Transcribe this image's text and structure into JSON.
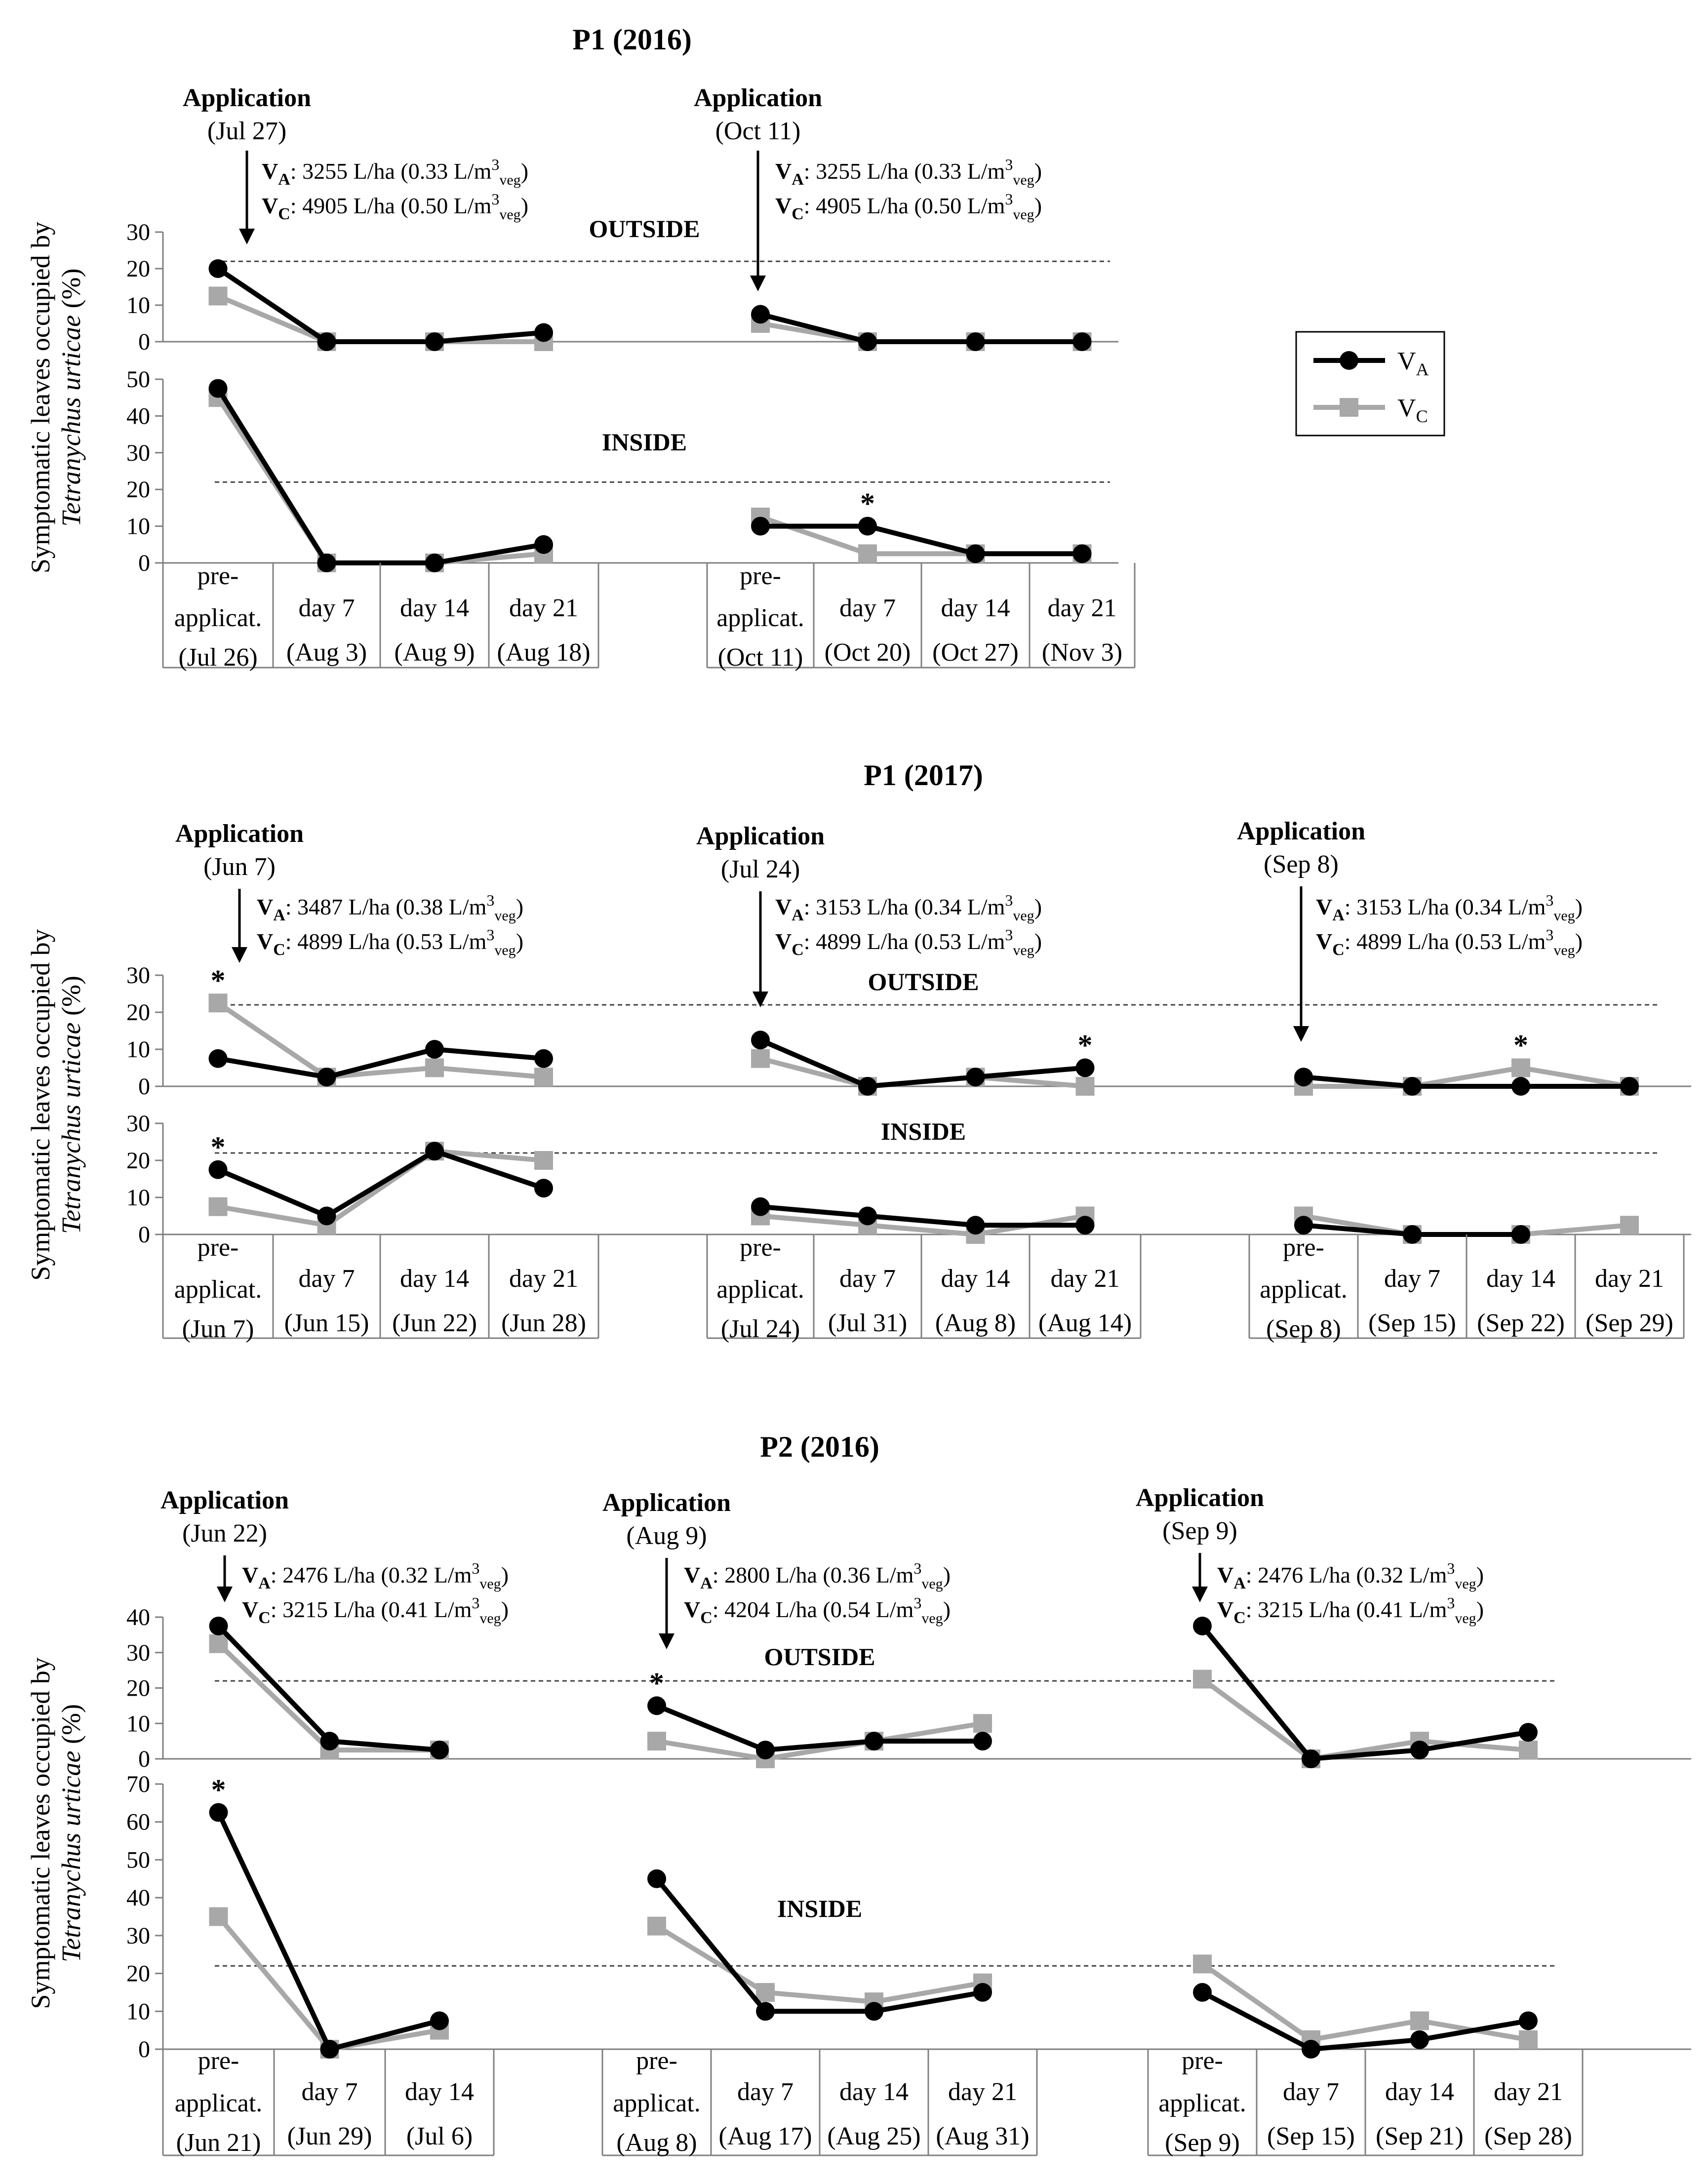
{
  "chart_data": [
    {
      "type": "line",
      "title": "P1 (2016)",
      "ylabel": "Symptomatic leaves occupied by",
      "ylabel_italic": "Tetranychus urticae",
      "ylabel_unit": "(%)",
      "threshold": 22,
      "threshold_style": "dashed",
      "legend": {
        "position": "right",
        "entries": [
          {
            "series": "V",
            "sub": "A",
            "color": "#000000",
            "marker": "circle"
          },
          {
            "series": "V",
            "sub": "C",
            "color": "#a8a8a8",
            "marker": "square"
          }
        ]
      },
      "applications": [
        {
          "label": "Application",
          "date": "(Jul 27)",
          "va": {
            "key": "V",
            "sub": "A",
            "text": ": 3255 L/ha (0.33 L/m",
            "sup": "3",
            "sub2": "veg",
            "close": ")"
          },
          "vc": {
            "key": "V",
            "sub": "C",
            "text": ": 4905 L/ha (0.50 L/m",
            "sup": "3",
            "sub2": "veg",
            "close": ")"
          }
        },
        {
          "label": "Application",
          "date": "(Oct 11)",
          "va": {
            "key": "V",
            "sub": "A",
            "text": ": 3255 L/ha (0.33 L/m",
            "sup": "3",
            "sub2": "veg",
            "close": ")"
          },
          "vc": {
            "key": "V",
            "sub": "C",
            "text": ": 4905 L/ha (0.50 L/m",
            "sup": "3",
            "sub2": "veg",
            "close": ")"
          }
        }
      ],
      "categories": [
        [
          "pre-",
          "applicat.",
          "(Jul 26)"
        ],
        [
          "day 7",
          "(Aug 3)"
        ],
        [
          "day 14",
          "(Aug 9)"
        ],
        [
          "day 21",
          "(Aug 18)"
        ],
        [
          "pre-",
          "applicat.",
          "(Oct 11)"
        ],
        [
          "day 7",
          "(Oct 20)"
        ],
        [
          "day 14",
          "(Oct 27)"
        ],
        [
          "day 21",
          "(Nov 3)"
        ]
      ],
      "groups": [
        [
          0,
          1,
          2,
          3
        ],
        [
          4,
          5,
          6,
          7
        ]
      ],
      "subplots": [
        {
          "label": "OUTSIDE",
          "ylim": [
            0,
            30
          ],
          "yticks": [
            0,
            10,
            20,
            30
          ],
          "series": [
            {
              "name": "VA",
              "groups": [
                [
                  20,
                  0,
                  0,
                  2.5
                ],
                [
                  7.5,
                  0,
                  0,
                  0
                ]
              ]
            },
            {
              "name": "VC",
              "groups": [
                [
                  12.5,
                  0,
                  0,
                  0
                ],
                [
                  5,
                  0,
                  0,
                  0
                ]
              ]
            }
          ],
          "stars": []
        },
        {
          "label": "INSIDE",
          "ylim": [
            0,
            50
          ],
          "yticks": [
            0,
            10,
            20,
            30,
            40,
            50
          ],
          "series": [
            {
              "name": "VA",
              "groups": [
                [
                  47.5,
                  0,
                  0,
                  5
                ],
                [
                  10,
                  10,
                  2.5,
                  2.5
                ]
              ]
            },
            {
              "name": "VC",
              "groups": [
                [
                  45,
                  0,
                  0,
                  2.5
                ],
                [
                  12.5,
                  2.5,
                  2.5,
                  2.5
                ]
              ]
            }
          ],
          "stars": [
            {
              "cat": 5,
              "y": 10,
              "symbol": "*"
            }
          ]
        }
      ]
    },
    {
      "type": "line",
      "title": "P1 (2017)",
      "ylabel": "Symptomatic leaves occupied by",
      "ylabel_italic": "Tetranychus urticae",
      "ylabel_unit": "(%)",
      "threshold": 22,
      "threshold_style": "dashed",
      "applications": [
        {
          "label": "Application",
          "date": "(Jun 7)",
          "va": {
            "key": "V",
            "sub": "A",
            "text": ": 3487 L/ha (0.38 L/m",
            "sup": "3",
            "sub2": "veg",
            "close": ")"
          },
          "vc": {
            "key": "V",
            "sub": "C",
            "text": ": 4899 L/ha (0.53 L/m",
            "sup": "3",
            "sub2": "veg",
            "close": ")"
          }
        },
        {
          "label": "Application",
          "date": "(Jul 24)",
          "va": {
            "key": "V",
            "sub": "A",
            "text": ": 3153 L/ha (0.34 L/m",
            "sup": "3",
            "sub2": "veg",
            "close": ")"
          },
          "vc": {
            "key": "V",
            "sub": "C",
            "text": ": 4899 L/ha (0.53 L/m",
            "sup": "3",
            "sub2": "veg",
            "close": ")"
          }
        },
        {
          "label": "Application",
          "date": "(Sep 8)",
          "va": {
            "key": "V",
            "sub": "A",
            "text": ": 3153 L/ha (0.34 L/m",
            "sup": "3",
            "sub2": "veg",
            "close": ")"
          },
          "vc": {
            "key": "V",
            "sub": "C",
            "text": ": 4899 L/ha (0.53 L/m",
            "sup": "3",
            "sub2": "veg",
            "close": ")"
          }
        }
      ],
      "categories": [
        [
          "pre-",
          "applicat.",
          "(Jun 7)"
        ],
        [
          "day 7",
          "(Jun 15)"
        ],
        [
          "day 14",
          "(Jun 22)"
        ],
        [
          "day 21",
          "(Jun 28)"
        ],
        [
          "pre-",
          "applicat.",
          "(Jul 24)"
        ],
        [
          "day 7",
          "(Jul 31)"
        ],
        [
          "day 14",
          "(Aug 8)"
        ],
        [
          "day 21",
          "(Aug 14)"
        ],
        [
          "pre-",
          "applicat.",
          "(Sep 8)"
        ],
        [
          "day 7",
          "(Sep 15)"
        ],
        [
          "day 14",
          "(Sep 22)"
        ],
        [
          "day 21",
          "(Sep 29)"
        ]
      ],
      "groups": [
        [
          0,
          1,
          2,
          3
        ],
        [
          4,
          5,
          6,
          7
        ],
        [
          8,
          9,
          10,
          11
        ]
      ],
      "subplots": [
        {
          "label": "OUTSIDE",
          "ylim": [
            0,
            30
          ],
          "yticks": [
            0,
            10,
            20,
            30
          ],
          "series": [
            {
              "name": "VA",
              "groups": [
                [
                  7.5,
                  2.5,
                  10,
                  7.5
                ],
                [
                  12.5,
                  0,
                  2.5,
                  5
                ],
                [
                  2.5,
                  0,
                  0,
                  0
                ]
              ]
            },
            {
              "name": "VC",
              "groups": [
                [
                  22.5,
                  2.5,
                  5,
                  2.5
                ],
                [
                  7.5,
                  0,
                  2.5,
                  0
                ],
                [
                  0,
                  0,
                  5,
                  0
                ]
              ]
            }
          ],
          "stars": [
            {
              "cat": 0,
              "y": 22.5,
              "symbol": "*"
            },
            {
              "cat": 7,
              "y": 5,
              "symbol": "*"
            },
            {
              "cat": 10,
              "y": 5,
              "symbol": "*"
            }
          ]
        },
        {
          "label": "INSIDE",
          "ylim": [
            0,
            30
          ],
          "yticks": [
            0,
            10,
            20,
            30
          ],
          "series": [
            {
              "name": "VA",
              "groups": [
                [
                  17.5,
                  5,
                  22.5,
                  12.5
                ],
                [
                  7.5,
                  5,
                  2.5,
                  2.5
                ],
                [
                  2.5,
                  0,
                  0,
                  null
                ]
              ]
            },
            {
              "name": "VC",
              "groups": [
                [
                  7.5,
                  2.5,
                  22.5,
                  20
                ],
                [
                  5,
                  2.5,
                  0,
                  5
                ],
                [
                  5,
                  0,
                  0,
                  2.5
                ]
              ]
            }
          ],
          "stars": [
            {
              "cat": 0,
              "y": 17.5,
              "symbol": "*"
            }
          ]
        }
      ]
    },
    {
      "type": "line",
      "title": "P2 (2016)",
      "ylabel": "Symptomatic leaves occupied by",
      "ylabel_italic": "Tetranychus urticae",
      "ylabel_unit": "(%)",
      "threshold": 22,
      "threshold_style": "dashed",
      "applications": [
        {
          "label": "Application",
          "date": "(Jun 22)",
          "va": {
            "key": "V",
            "sub": "A",
            "text": ": 2476 L/ha (0.32 L/m",
            "sup": "3",
            "sub2": "veg",
            "close": ")"
          },
          "vc": {
            "key": "V",
            "sub": "C",
            "text": ": 3215 L/ha (0.41 L/m",
            "sup": "3",
            "sub2": "veg",
            "close": ")"
          }
        },
        {
          "label": "Application",
          "date": "(Aug 9)",
          "va": {
            "key": "V",
            "sub": "A",
            "text": ": 2800 L/ha (0.36 L/m",
            "sup": "3",
            "sub2": "veg",
            "close": ")"
          },
          "vc": {
            "key": "V",
            "sub": "C",
            "text": ": 4204 L/ha (0.54 L/m",
            "sup": "3",
            "sub2": "veg",
            "close": ")"
          }
        },
        {
          "label": "Application",
          "date": "(Sep 9)",
          "va": {
            "key": "V",
            "sub": "A",
            "text": ": 2476 L/ha (0.32 L/m",
            "sup": "3",
            "sub2": "veg",
            "close": ")"
          },
          "vc": {
            "key": "V",
            "sub": "C",
            "text": ": 3215 L/ha (0.41 L/m",
            "sup": "3",
            "sub2": "veg",
            "close": ")"
          }
        }
      ],
      "categories": [
        [
          "pre-",
          "applicat.",
          "(Jun 21)"
        ],
        [
          "day 7",
          "(Jun 29)"
        ],
        [
          "day 14",
          "(Jul 6)"
        ],
        [
          "pre-",
          "applicat.",
          "(Aug 8)"
        ],
        [
          "day 7",
          "(Aug 17)"
        ],
        [
          "day 14",
          "(Aug 25)"
        ],
        [
          "day 21",
          "(Aug 31)"
        ],
        [
          "pre-",
          "applicat.",
          "(Sep 9)"
        ],
        [
          "day 7",
          "(Sep 15)"
        ],
        [
          "day 14",
          "(Sep 21)"
        ],
        [
          "day 21",
          "(Sep 28)"
        ]
      ],
      "groups": [
        [
          0,
          1,
          2
        ],
        [
          3,
          4,
          5,
          6
        ],
        [
          7,
          8,
          9,
          10
        ]
      ],
      "subplots": [
        {
          "label": "OUTSIDE",
          "ylim": [
            0,
            40
          ],
          "yticks": [
            0,
            10,
            20,
            30,
            40
          ],
          "series": [
            {
              "name": "VA",
              "groups": [
                [
                  37.5,
                  5,
                  2.5
                ],
                [
                  15,
                  2.5,
                  5,
                  5
                ],
                [
                  37.5,
                  0,
                  2.5,
                  7.5
                ]
              ]
            },
            {
              "name": "VC",
              "groups": [
                [
                  32.5,
                  2.5,
                  2.5
                ],
                [
                  5,
                  0,
                  5,
                  10
                ],
                [
                  22.5,
                  0,
                  5,
                  2.5
                ]
              ]
            }
          ],
          "stars": [
            {
              "cat": 3,
              "y": 15,
              "symbol": "*"
            }
          ]
        },
        {
          "label": "INSIDE",
          "ylim": [
            0,
            70
          ],
          "yticks": [
            0,
            10,
            20,
            30,
            40,
            50,
            60,
            70
          ],
          "series": [
            {
              "name": "VA",
              "groups": [
                [
                  62.5,
                  0,
                  7.5
                ],
                [
                  45,
                  10,
                  10,
                  15
                ],
                [
                  15,
                  0,
                  2.5,
                  7.5
                ]
              ]
            },
            {
              "name": "VC",
              "groups": [
                [
                  35,
                  0,
                  5
                ],
                [
                  32.5,
                  15,
                  12.5,
                  17.5
                ],
                [
                  22.5,
                  2.5,
                  7.5,
                  2.5
                ]
              ]
            }
          ],
          "stars": [
            {
              "cat": 0,
              "y": 62.5,
              "symbol": "*"
            }
          ]
        }
      ]
    }
  ]
}
